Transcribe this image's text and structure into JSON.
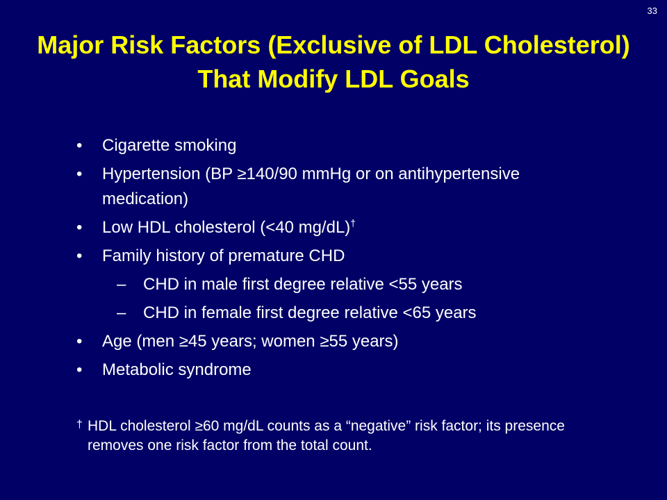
{
  "slide": {
    "number": "33",
    "title": "Major Risk Factors (Exclusive of LDL Cholesterol) That Modify LDL Goals",
    "bullet_marker": "•",
    "dash_marker": "–",
    "bullets": [
      {
        "text": "Cigarette smoking"
      },
      {
        "text": "Hypertension (BP ≥140/90 mmHg or on antihypertensive medication)"
      },
      {
        "text": "Low HDL cholesterol (<40 mg/dL)",
        "sup": "†"
      },
      {
        "text": "Family history of premature CHD"
      },
      {
        "text": "CHD in male first degree relative <55 years"
      },
      {
        "text": "CHD in female first degree relative <65 years"
      },
      {
        "text": "Age (men ≥45 years; women ≥55 years)"
      },
      {
        "text": "Metabolic syndrome"
      }
    ],
    "footnote": {
      "marker": "†",
      "text": "HDL cholesterol ≥60 mg/dL counts as a “negative” risk factor; its presence removes one risk factor from the total count."
    },
    "colors": {
      "background": "#000066",
      "title": "#ffff00",
      "text": "#ffffff"
    }
  }
}
